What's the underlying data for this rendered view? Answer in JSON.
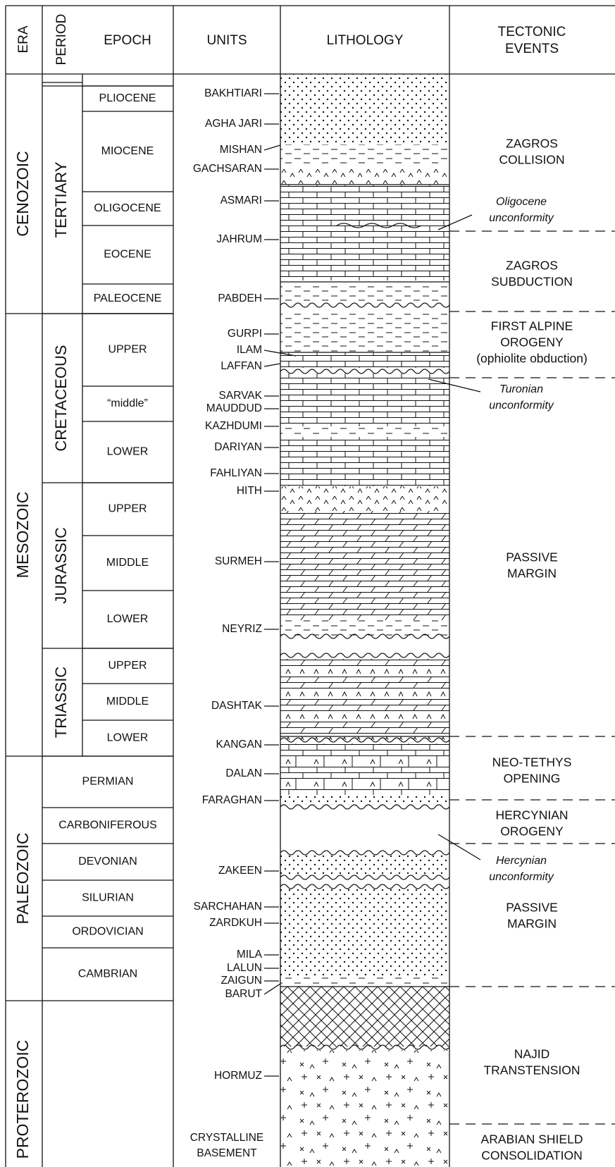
{
  "header": {
    "era": "ERA",
    "period": "PERIOD",
    "epoch": "EPOCH",
    "units": "UNITS",
    "lithology": "LITHOLOGY",
    "tectonic_events": [
      "TECTONIC",
      "EVENTS"
    ]
  },
  "eras": [
    "CENOZOIC",
    "MESOZOIC",
    "PALEOZOIC",
    "PROTEROZOIC"
  ],
  "periods": [
    "TERTIARY",
    "CRETACEOUS",
    "JURASSIC",
    "TRIASSIC",
    "PERMIAN",
    "CARBONIFEROUS",
    "DEVONIAN",
    "SILURIAN",
    "ORDOVICIAN",
    "CAMBRIAN"
  ],
  "epochs": [
    "PLIOCENE",
    "MIOCENE",
    "OLIGOCENE",
    "EOCENE",
    "PALEOCENE",
    "UPPER",
    "“middle”",
    "LOWER",
    "UPPER",
    "MIDDLE",
    "LOWER",
    "UPPER",
    "MIDDLE",
    "LOWER"
  ],
  "units": [
    "BAKHTIARI",
    "AGHA JARI",
    "MISHAN",
    "GACHSARAN",
    "ASMARI",
    "JAHRUM",
    "PABDEH",
    "GURPI",
    "ILAM",
    "LAFFAN",
    "SARVAK",
    "MAUDDUD",
    "KAZHDUMI",
    "DARIYAN",
    "FAHLIYAN",
    "HITH",
    "SURMEH",
    "NEYRIZ",
    "DASHTAK",
    "KANGAN",
    "DALAN",
    "FARAGHAN",
    "ZAKEEN",
    "SARCHAHAN",
    "ZARDKUH",
    "MILA",
    "LALUN",
    "ZAIGUN",
    "BARUT",
    "HORMUZ",
    [
      "CRYSTALLINE",
      "BASEMENT"
    ]
  ],
  "tectonic_events": [
    {
      "lines": [
        "ZAGROS",
        "COLLISION"
      ],
      "italic": false
    },
    {
      "lines": [
        "Oligocene",
        "unconformity"
      ],
      "italic": true
    },
    {
      "lines": [
        "ZAGROS",
        "SUBDUCTION"
      ],
      "italic": false
    },
    {
      "lines": [
        "FIRST ALPINE",
        "OROGENY",
        "(ophiolite obduction)"
      ],
      "italic": false
    },
    {
      "lines": [
        "Turonian",
        "unconformity"
      ],
      "italic": true
    },
    {
      "lines": [
        "PASSIVE",
        "MARGIN"
      ],
      "italic": false
    },
    {
      "lines": [
        "NEO-TETHYS",
        "OPENING"
      ],
      "italic": false
    },
    {
      "lines": [
        "HERCYNIAN",
        "OROGENY"
      ],
      "italic": false
    },
    {
      "lines": [
        "Hercynian",
        "unconformity"
      ],
      "italic": true
    },
    {
      "lines": [
        "PASSIVE",
        "MARGIN"
      ],
      "italic": false
    },
    {
      "lines": [
        "NAJID",
        "TRANSTENSION"
      ],
      "italic": false
    },
    {
      "lines": [
        "ARABIAN SHIELD",
        "CONSOLIDATION"
      ],
      "italic": false
    }
  ]
}
